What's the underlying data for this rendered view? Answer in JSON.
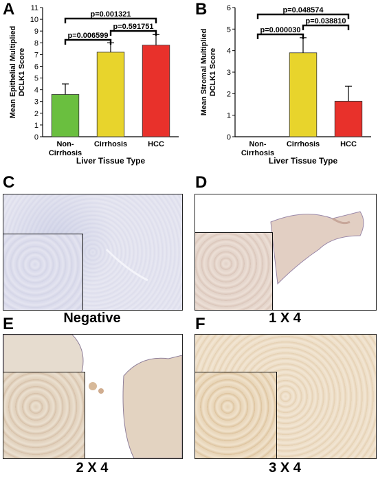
{
  "panels": {
    "A": {
      "letter": "A"
    },
    "B": {
      "letter": "B"
    },
    "C": {
      "letter": "C",
      "caption": "Negative"
    },
    "D": {
      "letter": "D",
      "caption": "1 X 4"
    },
    "E": {
      "letter": "E",
      "caption": "2 X 4"
    },
    "F": {
      "letter": "F",
      "caption": "3 X 4"
    }
  },
  "chart_data": [
    {
      "type": "bar",
      "panel": "A",
      "categories": [
        "Non-\nCirrhosis",
        "Cirrhosis",
        "HCC"
      ],
      "values": [
        3.6,
        7.2,
        7.8
      ],
      "errors": [
        0.9,
        0.8,
        0.9
      ],
      "colors": [
        "#6abf3f",
        "#e8d42c",
        "#e8312b"
      ],
      "xlabel": "Liver Tissue Type",
      "ylabel": "Mean Epithelial Multiplied\nDCLK1 Score",
      "ylim": [
        0,
        11
      ],
      "yticks": [
        0,
        1,
        2,
        3,
        4,
        5,
        6,
        7,
        8,
        9,
        10,
        11
      ],
      "comparisons": [
        {
          "from": 0,
          "to": 1,
          "label": "p=0.006599"
        },
        {
          "from": 1,
          "to": 2,
          "label": "p=0.591751"
        },
        {
          "from": 0,
          "to": 2,
          "label": "p=0.001321"
        }
      ]
    },
    {
      "type": "bar",
      "panel": "B",
      "categories": [
        "Non-\nCirrhosis",
        "Cirrhosis",
        "HCC"
      ],
      "values": [
        0,
        3.9,
        1.65
      ],
      "errors": [
        0,
        0.7,
        0.7
      ],
      "colors": [
        "#6abf3f",
        "#e8d42c",
        "#e8312b"
      ],
      "xlabel": "Liver Tissue Type",
      "ylabel": "Mean Stromal Multiplied\nDCLK1 Score",
      "ylim": [
        0,
        6
      ],
      "yticks": [
        0,
        1,
        2,
        3,
        4,
        5,
        6
      ],
      "comparisons": [
        {
          "from": 0,
          "to": 1,
          "label": "p=0.000030"
        },
        {
          "from": 1,
          "to": 2,
          "label": "p=0.038810"
        },
        {
          "from": 0,
          "to": 2,
          "label": "p=0.048574"
        }
      ]
    }
  ]
}
